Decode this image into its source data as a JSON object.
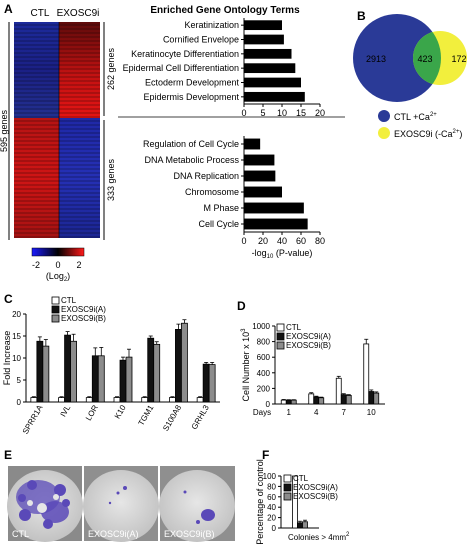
{
  "panel_letters": [
    "A",
    "B",
    "C",
    "D",
    "E",
    "F"
  ],
  "panel_a": {
    "heatmap_cols": [
      "CTL",
      "EXOSC9i"
    ],
    "total_genes": "595 genes",
    "group_up": "262 genes",
    "group_down": "333 genes",
    "colorbar": {
      "ticks": [
        "-2",
        "0",
        "2"
      ],
      "label": "(Log",
      "label_sub": "2",
      "label_end": ")"
    },
    "colors": {
      "low": "#1a1aff",
      "mid": "#000000",
      "high": "#ff1a1a"
    }
  },
  "chart_data": [
    {
      "id": "A-top",
      "type": "bar",
      "title": "Enriched Gene Ontology Terms",
      "categories": [
        "Keratinization",
        "Cornified Envelope",
        "Keratinocyte Differentiation",
        "Epidermal Cell Differentiation",
        "Ectoderm Development",
        "Epidermis Development"
      ],
      "values": [
        10,
        10.5,
        12.5,
        13.5,
        15,
        16
      ],
      "xlim": [
        0,
        20
      ],
      "xticks": [
        "0",
        "5",
        "10",
        "15",
        "20"
      ],
      "orientation": "horizontal"
    },
    {
      "id": "A-bottom",
      "type": "bar",
      "categories": [
        "Regulation of Cell Cycle",
        "DNA Metabolic Process",
        "DNA Replication",
        "Chromosome",
        "M Phase",
        "Cell Cycle"
      ],
      "values": [
        17,
        32,
        33,
        40,
        63,
        67
      ],
      "xlim": [
        0,
        80
      ],
      "xticks": [
        "0",
        "20",
        "40",
        "60",
        "80"
      ],
      "xlabel_pre": "-log",
      "xlabel_sub": "10",
      "xlabel_post": " (P-value)",
      "orientation": "horizontal"
    },
    {
      "id": "B",
      "type": "venn",
      "sets": [
        {
          "name": "CTL +Ca",
          "sup": "2+",
          "only": "2913",
          "color": "#2a3a97"
        },
        {
          "name": "EXOSC9i (-Ca",
          "sup": "2+",
          "name_end": ")",
          "only": "172",
          "color": "#f2ef3d"
        }
      ],
      "overlap": "423",
      "overlap_color": "#3aa64a"
    },
    {
      "id": "C",
      "type": "bar",
      "ylabel": "Fold Increase",
      "categories": [
        "SPRR1A",
        "IVL",
        "LOR",
        "K10",
        "TGM1",
        "S100A8",
        "GRHL3"
      ],
      "series": [
        {
          "name": "CTL",
          "values": [
            1,
            1,
            1,
            1,
            1,
            1,
            1
          ],
          "errors": [
            0.2,
            0.2,
            0.2,
            0.2,
            0.2,
            0.2,
            0.2
          ],
          "color": "#ffffff"
        },
        {
          "name": "EXOSC9i(A)",
          "values": [
            13.8,
            15.2,
            10.5,
            9.5,
            14.5,
            16.5,
            8.6
          ],
          "errors": [
            1.0,
            0.8,
            1.8,
            0.7,
            0.5,
            1.2,
            0.4
          ],
          "color": "#111111"
        },
        {
          "name": "EXOSC9i(B)",
          "values": [
            12.7,
            13.8,
            10.5,
            10.2,
            13.1,
            17.9,
            8.5
          ],
          "errors": [
            1.5,
            1.6,
            1.9,
            1.8,
            0.6,
            0.8,
            0.5
          ],
          "color": "#8c8c8c"
        }
      ],
      "ylim": [
        0,
        20
      ],
      "yticks": [
        "0",
        "5",
        "10",
        "15",
        "20"
      ]
    },
    {
      "id": "D",
      "type": "bar",
      "ylabel_pre": "Cell Number x 10",
      "ylabel_sup": "3",
      "xlabel": "Days",
      "categories": [
        "1",
        "4",
        "7",
        "10"
      ],
      "series": [
        {
          "name": "CTL",
          "values": [
            50,
            130,
            330,
            770
          ],
          "errors": [
            8,
            15,
            25,
            60
          ],
          "color": "#ffffff"
        },
        {
          "name": "EXOSC9i(A)",
          "values": [
            50,
            90,
            120,
            160
          ],
          "errors": [
            5,
            10,
            12,
            20
          ],
          "color": "#111111"
        },
        {
          "name": "EXOSC9i(B)",
          "values": [
            50,
            80,
            110,
            140
          ],
          "errors": [
            5,
            8,
            10,
            15
          ],
          "color": "#8c8c8c"
        }
      ],
      "ylim": [
        0,
        1000
      ],
      "yticks": [
        "0",
        "200",
        "400",
        "600",
        "800",
        "1000"
      ]
    },
    {
      "id": "F",
      "type": "bar",
      "ylabel": "Percentage of control",
      "xlabel_pre": "Colonies > 4mm",
      "xlabel_sup": "2",
      "categories": [
        ""
      ],
      "series": [
        {
          "name": "CTL",
          "values": [
            100
          ],
          "errors": [
            0
          ],
          "color": "#ffffff"
        },
        {
          "name": "EXOSC9i(A)",
          "values": [
            10
          ],
          "errors": [
            3
          ],
          "color": "#111111"
        },
        {
          "name": "EXOSC9i(B)",
          "values": [
            12
          ],
          "errors": [
            3
          ],
          "color": "#8c8c8c"
        }
      ],
      "ylim": [
        0,
        100
      ],
      "yticks": [
        "0",
        "20",
        "40",
        "60",
        "80",
        "100"
      ]
    }
  ],
  "panel_e": {
    "labels": [
      "CTL",
      "EXOSC9i(A)",
      "EXOSC9i(B)"
    ],
    "colors": {
      "bg": "#8a8a8a",
      "dish": "#d7d7d7",
      "stain": "#5a49b8"
    }
  }
}
